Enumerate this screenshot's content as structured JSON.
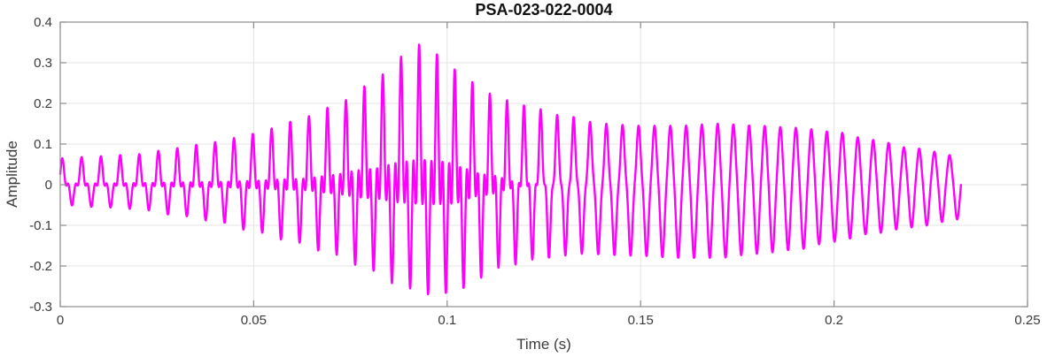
{
  "figure": {
    "title": "PSA-023-022-0004"
  },
  "chart_data": {
    "type": "line",
    "title": "PSA-023-022-0004",
    "xlabel": "Time (s)",
    "ylabel": "Amplitude",
    "xlim": [
      0,
      0.25
    ],
    "ylim": [
      -0.3,
      0.4
    ],
    "xticks": [
      0,
      0.05,
      0.1,
      0.15,
      0.2,
      0.25
    ],
    "xtick_labels": [
      "0",
      "0.05",
      "0.1",
      "0.15",
      "0.2",
      "0.25"
    ],
    "yticks": [
      -0.3,
      -0.2,
      -0.1,
      0,
      0.1,
      0.2,
      0.3,
      0.4
    ],
    "ytick_labels": [
      "-0.3",
      "-0.2",
      "-0.1",
      "0",
      "0.1",
      "0.2",
      "0.3",
      "0.4"
    ],
    "grid": true,
    "legend": null,
    "colors": {
      "line": "#FF00FF",
      "axis_box": "#8c8c8c",
      "grid": "#e3e3e3",
      "tick_label": "#3b3b3b",
      "title": "#111111",
      "background": "#ffffff"
    },
    "line_width": 2.4,
    "signal": {
      "kind": "amplitude-modulated oscillation with harmonic content",
      "t_start": 0,
      "t_end": 0.2328,
      "sample_dt": 5e-05,
      "start_phase": 0.9,
      "peak_value": 0.345,
      "peak_time": 0.093,
      "min_value": -0.27,
      "freq_hz": [
        [
          0,
          200
        ],
        [
          0.04,
          205
        ],
        [
          0.08,
          210
        ],
        [
          0.1,
          218
        ],
        [
          0.13,
          235
        ],
        [
          0.16,
          245
        ],
        [
          0.2,
          250
        ],
        [
          0.2328,
          255
        ]
      ],
      "upper_env": [
        [
          0,
          0.065
        ],
        [
          0.01,
          0.07
        ],
        [
          0.02,
          0.075
        ],
        [
          0.03,
          0.09
        ],
        [
          0.04,
          0.105
        ],
        [
          0.05,
          0.125
        ],
        [
          0.06,
          0.155
        ],
        [
          0.07,
          0.19
        ],
        [
          0.08,
          0.245
        ],
        [
          0.088,
          0.315
        ],
        [
          0.093,
          0.345
        ],
        [
          0.098,
          0.32
        ],
        [
          0.104,
          0.27
        ],
        [
          0.11,
          0.225
        ],
        [
          0.12,
          0.195
        ],
        [
          0.13,
          0.17
        ],
        [
          0.14,
          0.15
        ],
        [
          0.15,
          0.145
        ],
        [
          0.16,
          0.145
        ],
        [
          0.17,
          0.15
        ],
        [
          0.18,
          0.145
        ],
        [
          0.19,
          0.14
        ],
        [
          0.2,
          0.13
        ],
        [
          0.21,
          0.11
        ],
        [
          0.22,
          0.09
        ],
        [
          0.2328,
          0.07
        ]
      ],
      "lower_env": [
        [
          0,
          0.05
        ],
        [
          0.01,
          0.055
        ],
        [
          0.02,
          0.06
        ],
        [
          0.03,
          0.075
        ],
        [
          0.04,
          0.09
        ],
        [
          0.05,
          0.115
        ],
        [
          0.06,
          0.14
        ],
        [
          0.07,
          0.17
        ],
        [
          0.08,
          0.21
        ],
        [
          0.088,
          0.25
        ],
        [
          0.095,
          0.27
        ],
        [
          0.102,
          0.265
        ],
        [
          0.108,
          0.23
        ],
        [
          0.115,
          0.2
        ],
        [
          0.125,
          0.18
        ],
        [
          0.135,
          0.17
        ],
        [
          0.15,
          0.175
        ],
        [
          0.16,
          0.18
        ],
        [
          0.17,
          0.18
        ],
        [
          0.18,
          0.17
        ],
        [
          0.19,
          0.16
        ],
        [
          0.2,
          0.14
        ],
        [
          0.21,
          0.12
        ],
        [
          0.22,
          0.105
        ],
        [
          0.2328,
          0.085
        ]
      ],
      "harmonic_ratio": [
        [
          0,
          0.45
        ],
        [
          0.04,
          0.5
        ],
        [
          0.06,
          0.55
        ],
        [
          0.08,
          0.7
        ],
        [
          0.09,
          0.75
        ],
        [
          0.1,
          0.75
        ],
        [
          0.11,
          0.6
        ],
        [
          0.12,
          0.4
        ],
        [
          0.13,
          0.25
        ],
        [
          0.14,
          0.15
        ],
        [
          0.16,
          0.08
        ],
        [
          0.2,
          0.05
        ],
        [
          0.2328,
          0.05
        ]
      ]
    }
  }
}
